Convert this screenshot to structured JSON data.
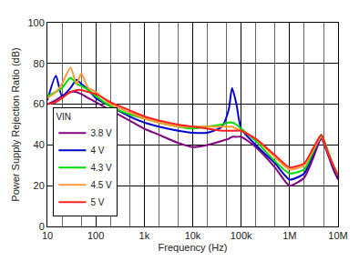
{
  "chart_data": {
    "type": "line",
    "x_label": "Frequency (Hz)",
    "y_label": "Power Supply Rejection Ratio (dB)",
    "legend_title": "VIN",
    "log": "x",
    "grid": true,
    "legend": "lower left",
    "xlim": [
      10,
      10000000
    ],
    "ylim": [
      0,
      100
    ],
    "xticks": [
      10,
      100,
      {
        "value": 1000,
        "label": "1k"
      },
      {
        "value": 10000,
        "label": "10k"
      },
      {
        "value": 100000,
        "label": "100k"
      },
      {
        "value": 1000000,
        "label": "1M"
      },
      {
        "value": 10000000,
        "label": "10M"
      }
    ],
    "yticks": [
      0,
      20,
      40,
      60,
      80,
      100
    ],
    "x": [
      10,
      15,
      20,
      30,
      40,
      50,
      70,
      100,
      200,
      500,
      1000,
      2000,
      5000,
      10000,
      20000,
      40000,
      55000,
      65000,
      80000,
      100000,
      200000,
      500000,
      1000000,
      2000000,
      3000000,
      4500000,
      6000000,
      8000000,
      10000000
    ],
    "series": [
      {
        "name": "3.8 V",
        "color": "#800080",
        "values": [
          60,
          62,
          64,
          66,
          66,
          65,
          63,
          61,
          57,
          52,
          48,
          45,
          41,
          39,
          40,
          42,
          43,
          44,
          44,
          44,
          39,
          29,
          20,
          24,
          33,
          43,
          36,
          28,
          23
        ]
      },
      {
        "name": "4 V",
        "color": "#0000cc",
        "values": [
          62,
          74,
          64,
          68,
          72,
          70,
          67,
          63,
          59,
          54,
          51,
          49,
          47,
          46,
          46,
          49,
          57,
          68,
          60,
          48,
          40,
          31,
          23,
          26,
          35,
          45,
          37,
          29,
          24
        ]
      },
      {
        "name": "4.3 V",
        "color": "#00dd00",
        "values": [
          64,
          66,
          68,
          73,
          70,
          69,
          67,
          64,
          59,
          55,
          53,
          51,
          49,
          48,
          49,
          50,
          51,
          51,
          50,
          48,
          42,
          32,
          26,
          28,
          36,
          45,
          38,
          30,
          25
        ]
      },
      {
        "name": "4.5 V",
        "color": "#ff9933",
        "values": [
          63,
          66,
          70,
          78,
          70,
          75,
          68,
          66,
          60,
          56,
          53,
          51,
          49,
          49,
          49,
          49,
          49,
          49,
          48,
          47,
          43,
          34,
          28,
          30,
          37,
          44,
          37,
          30,
          25
        ]
      },
      {
        "name": "5 V",
        "color": "#ff2020",
        "values": [
          60,
          61,
          63,
          66,
          67,
          67,
          66,
          65,
          61,
          57,
          54,
          52,
          50,
          49,
          48,
          47,
          47,
          47,
          47,
          47,
          43,
          35,
          29,
          31,
          38,
          45,
          37,
          30,
          25
        ]
      }
    ]
  }
}
